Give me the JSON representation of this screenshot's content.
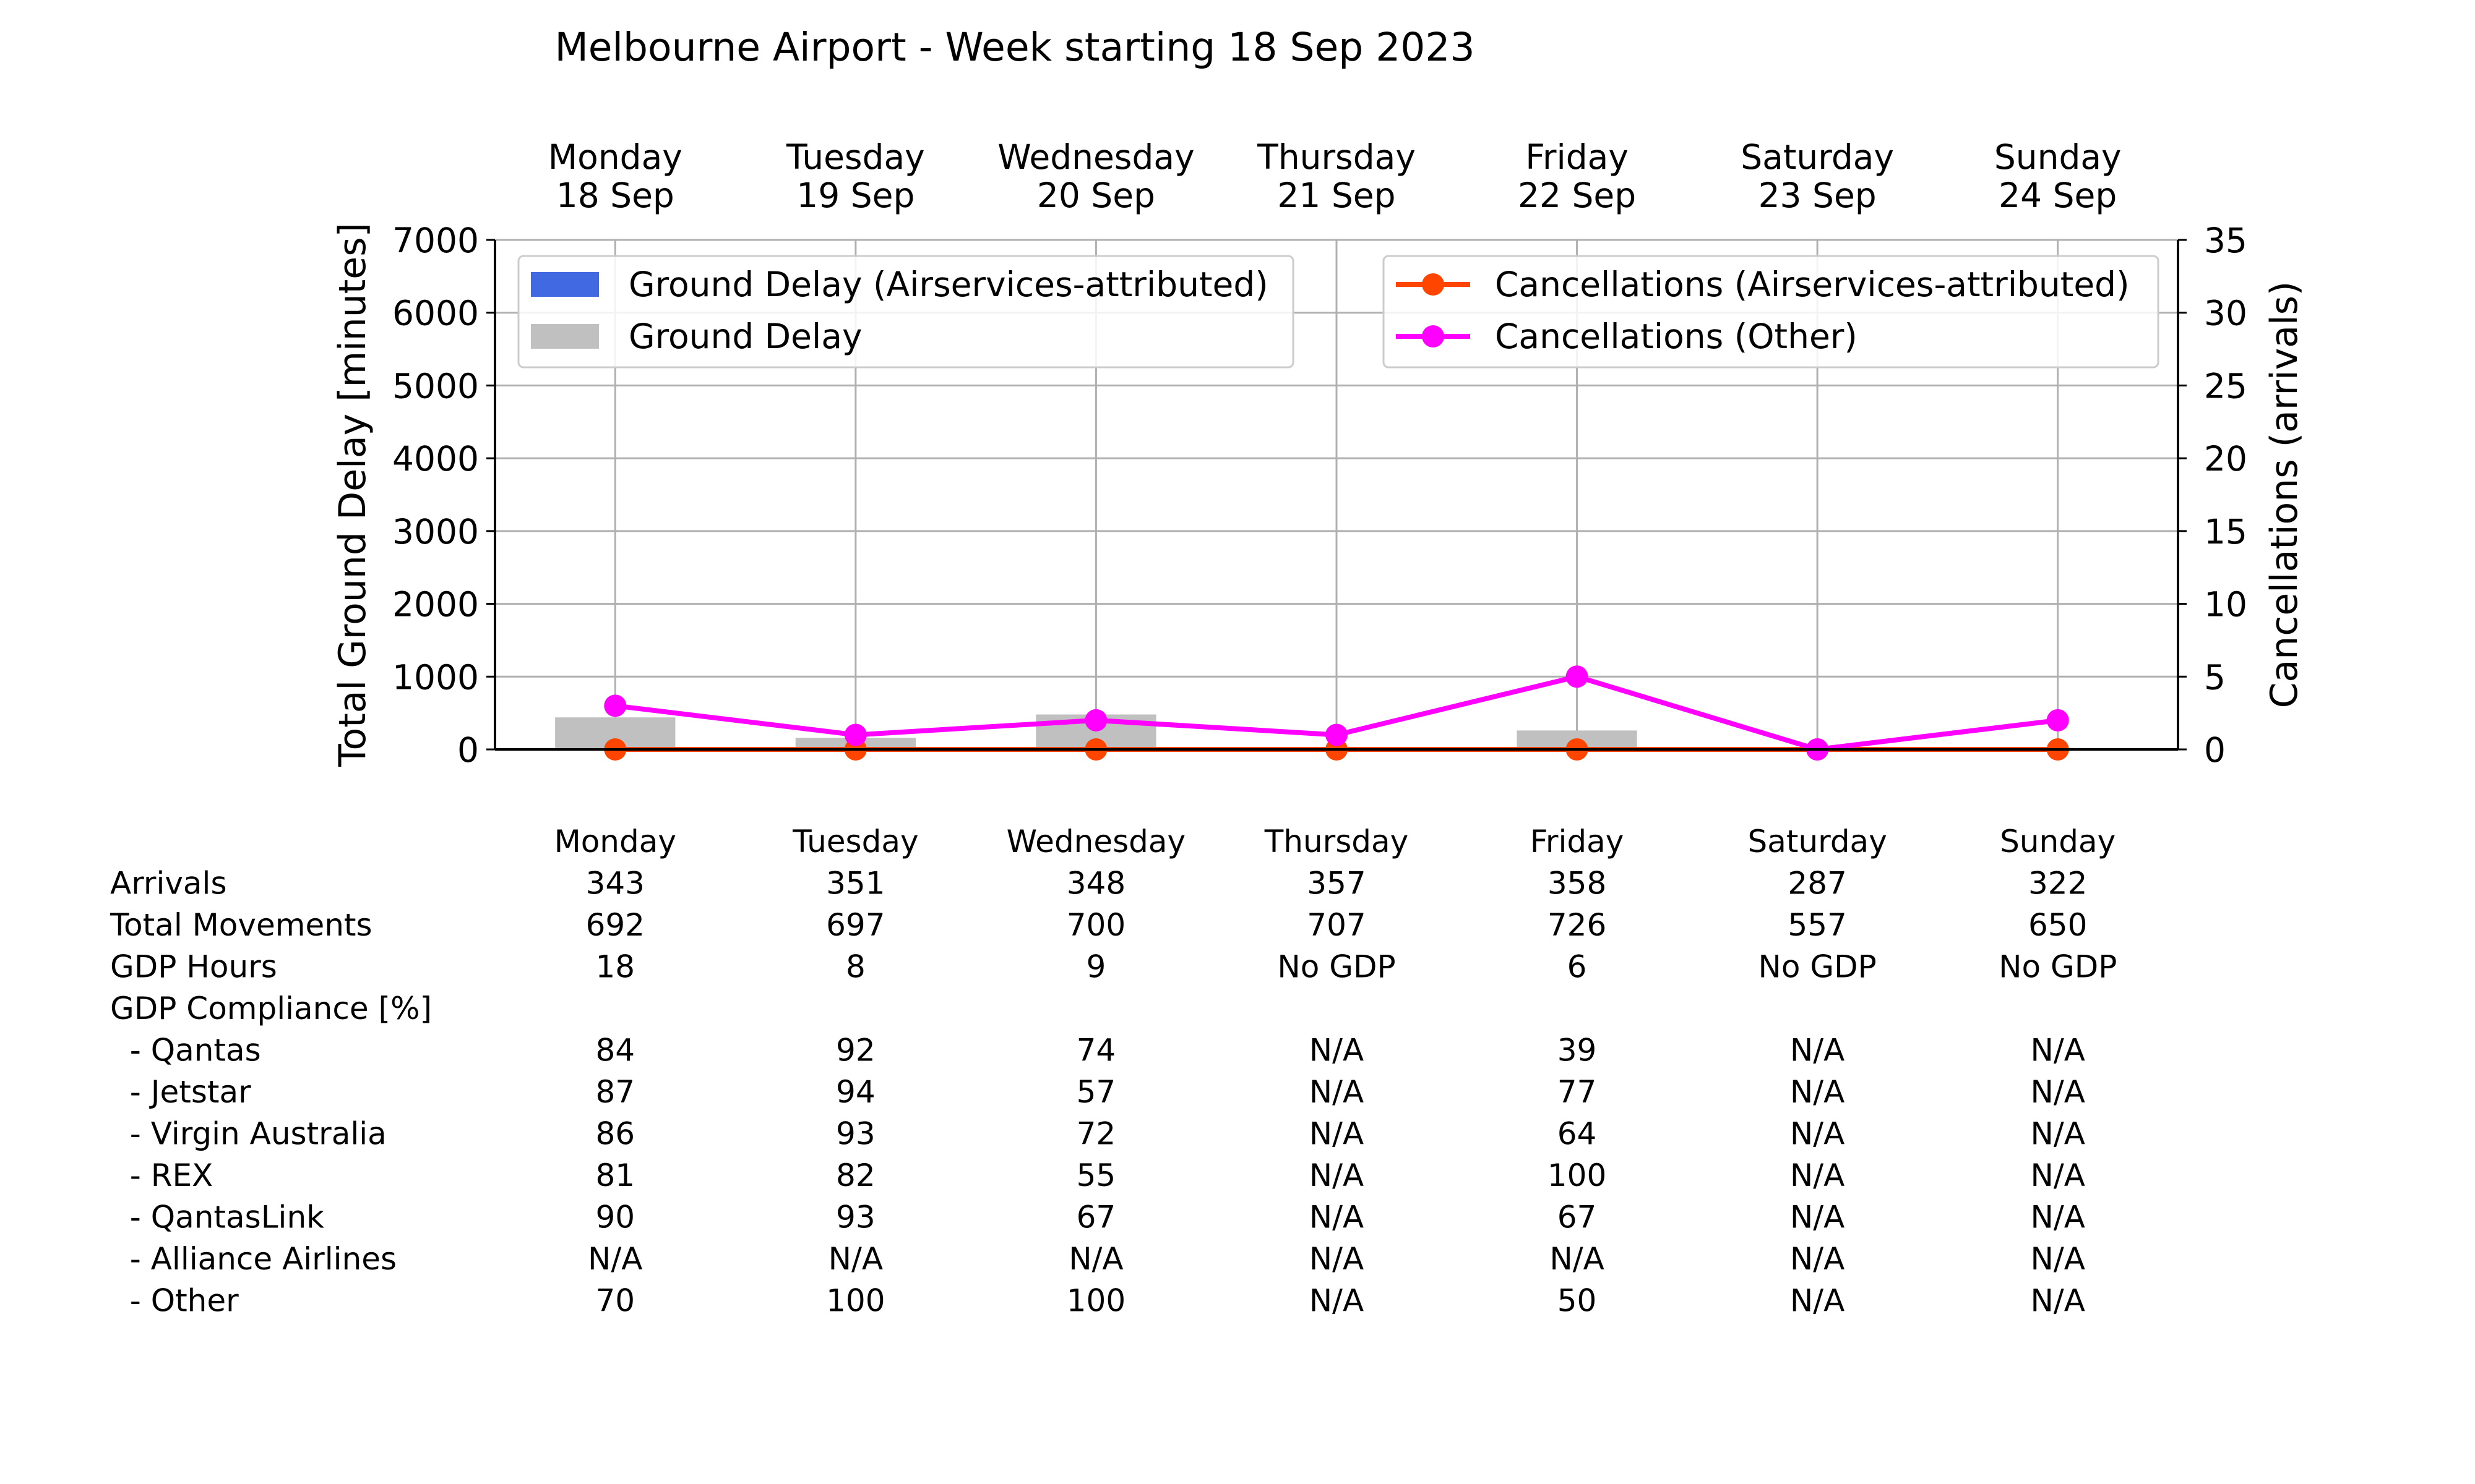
{
  "chart_data": {
    "type": "bar",
    "title": "Melbourne Airport - Week starting 18 Sep 2023",
    "day_labels": [
      {
        "weekday": "Monday",
        "date": "18 Sep"
      },
      {
        "weekday": "Tuesday",
        "date": "19 Sep"
      },
      {
        "weekday": "Wednesday",
        "date": "20 Sep"
      },
      {
        "weekday": "Thursday",
        "date": "21 Sep"
      },
      {
        "weekday": "Friday",
        "date": "22 Sep"
      },
      {
        "weekday": "Saturday",
        "date": "23 Sep"
      },
      {
        "weekday": "Sunday",
        "date": "24 Sep"
      }
    ],
    "left_axis": {
      "label": "Total Ground Delay [minutes]",
      "ylim": [
        0,
        7000
      ],
      "ticks": [
        0,
        1000,
        2000,
        3000,
        4000,
        5000,
        6000,
        7000
      ]
    },
    "right_axis": {
      "label": "Cancellations (arrivals)",
      "ylim": [
        0,
        35
      ],
      "ticks": [
        0,
        5,
        10,
        15,
        20,
        25,
        30,
        35
      ]
    },
    "grid": true,
    "bar_series": [
      {
        "name": "Ground Delay (Airservices-attributed)",
        "color": "#4169e1",
        "values": [
          0,
          0,
          0,
          0,
          0,
          0,
          0
        ]
      },
      {
        "name": "Ground Delay",
        "color": "#c0c0c0",
        "values": [
          440,
          160,
          480,
          0,
          260,
          0,
          0
        ]
      }
    ],
    "line_series": [
      {
        "name": "Cancellations (Airservices-attributed)",
        "color": "#ff4500",
        "values": [
          0,
          0,
          0,
          0,
          0,
          0,
          0
        ]
      },
      {
        "name": "Cancellations (Other)",
        "color": "#ff00ff",
        "values": [
          3,
          1,
          2,
          1,
          5,
          0,
          2
        ]
      }
    ],
    "legend_placement": "top (left legend for bars, right legend for lines)"
  },
  "table": {
    "days": [
      "Monday",
      "Tuesday",
      "Wednesday",
      "Thursday",
      "Friday",
      "Saturday",
      "Sunday"
    ],
    "rows": [
      {
        "label": "Arrivals",
        "values": [
          "343",
          "351",
          "348",
          "357",
          "358",
          "287",
          "322"
        ]
      },
      {
        "label": "Total Movements",
        "values": [
          "692",
          "697",
          "700",
          "707",
          "726",
          "557",
          "650"
        ]
      },
      {
        "label": "GDP Hours",
        "values": [
          "18",
          "8",
          "9",
          "No GDP",
          "6",
          "No GDP",
          "No GDP"
        ]
      },
      {
        "label": "GDP Compliance [%]",
        "values": [
          "",
          "",
          "",
          "",
          "",
          "",
          ""
        ]
      },
      {
        "label": "  - Qantas",
        "values": [
          "84",
          "92",
          "74",
          "N/A",
          "39",
          "N/A",
          "N/A"
        ]
      },
      {
        "label": "  - Jetstar",
        "values": [
          "87",
          "94",
          "57",
          "N/A",
          "77",
          "N/A",
          "N/A"
        ]
      },
      {
        "label": "  - Virgin Australia",
        "values": [
          "86",
          "93",
          "72",
          "N/A",
          "64",
          "N/A",
          "N/A"
        ]
      },
      {
        "label": "  - REX",
        "values": [
          "81",
          "82",
          "55",
          "N/A",
          "100",
          "N/A",
          "N/A"
        ]
      },
      {
        "label": "  - QantasLink",
        "values": [
          "90",
          "93",
          "67",
          "N/A",
          "67",
          "N/A",
          "N/A"
        ]
      },
      {
        "label": "  - Alliance Airlines",
        "values": [
          "N/A",
          "N/A",
          "N/A",
          "N/A",
          "N/A",
          "N/A",
          "N/A"
        ]
      },
      {
        "label": "  - Other",
        "values": [
          "70",
          "100",
          "100",
          "N/A",
          "50",
          "N/A",
          "N/A"
        ]
      }
    ]
  }
}
